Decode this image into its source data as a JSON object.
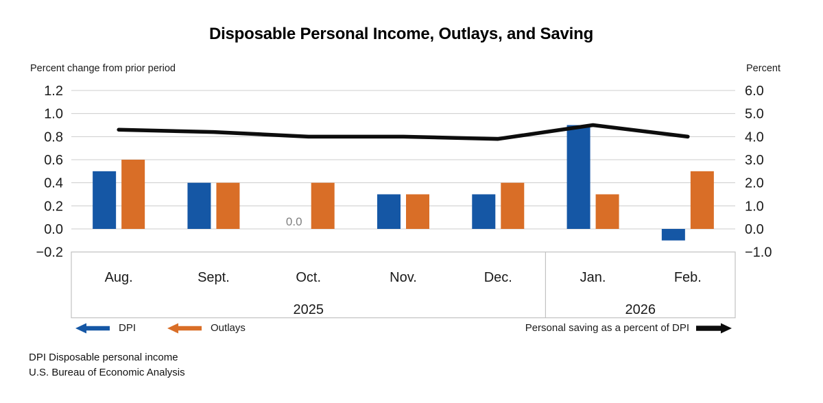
{
  "chart_data": {
    "type": "bar",
    "title": "Disposable Personal Income, Outlays, and Saving",
    "categories": [
      "Aug.",
      "Sept.",
      "Oct.",
      "Nov.",
      "Dec.",
      "Jan.",
      "Feb."
    ],
    "year_groups": [
      {
        "label": "2025",
        "span": [
          0,
          4
        ]
      },
      {
        "label": "2026",
        "span": [
          5,
          6
        ]
      }
    ],
    "series": [
      {
        "name": "DPI",
        "type": "bar",
        "axis": "left",
        "color": "#1557A5",
        "values": [
          0.5,
          0.4,
          0.0,
          0.3,
          0.3,
          0.9,
          -0.1
        ]
      },
      {
        "name": "Outlays",
        "type": "bar",
        "axis": "left",
        "color": "#D96E27",
        "values": [
          0.6,
          0.4,
          0.4,
          0.3,
          0.4,
          0.3,
          0.5
        ]
      },
      {
        "name": "Personal saving as a percent of DPI",
        "type": "line",
        "axis": "right",
        "color": "#0D0D0D",
        "values": [
          4.3,
          4.2,
          4.0,
          4.0,
          3.9,
          4.5,
          4.0
        ]
      }
    ],
    "left_axis": {
      "label": "Percent change from prior period",
      "ticks": [
        "1.2",
        "1.0",
        "0.8",
        "0.6",
        "0.4",
        "0.2",
        "0.0",
        "−0.2"
      ],
      "tick_values": [
        1.2,
        1.0,
        0.8,
        0.6,
        0.4,
        0.2,
        0.0,
        -0.2
      ],
      "min": -0.2,
      "max": 1.2
    },
    "right_axis": {
      "label": "Percent",
      "ticks": [
        "6.0",
        "5.0",
        "4.0",
        "3.0",
        "2.0",
        "1.0",
        "0.0",
        "−1.0"
      ],
      "tick_values": [
        6.0,
        5.0,
        4.0,
        3.0,
        2.0,
        1.0,
        0.0,
        -1.0
      ],
      "min": -1.0,
      "max": 6.0
    },
    "annotations": [
      {
        "text": "0.0",
        "series": "DPI",
        "category_index": 2
      }
    ],
    "grid": true,
    "legend_position": "bottom"
  },
  "legend": {
    "left_items": [
      {
        "label": "DPI",
        "color": "#1557A5",
        "arrow": "left"
      },
      {
        "label": "Outlays",
        "color": "#D96E27",
        "arrow": "left"
      }
    ],
    "right_item": {
      "label": "Personal saving as a percent of DPI",
      "color": "#0D0D0D",
      "arrow": "right"
    }
  },
  "footer": {
    "line1": "DPI Disposable personal income",
    "line2": "U.S. Bureau of Economic Analysis"
  },
  "colors": {
    "gridline": "#CCCCCC",
    "axis_box_border": "#C1C1C1",
    "annotation_gray": "#7F7F7F"
  }
}
